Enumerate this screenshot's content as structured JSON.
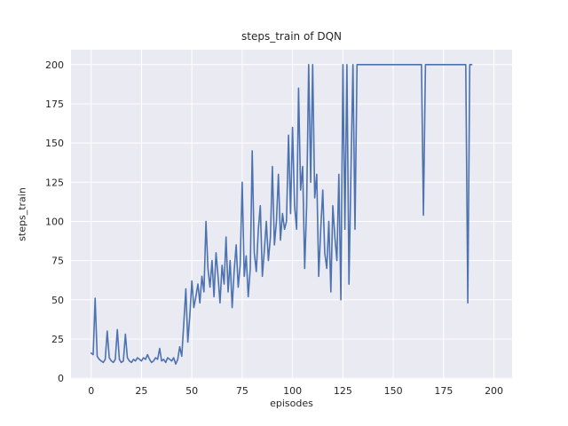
{
  "chart_data": {
    "type": "line",
    "title": "steps_train of DQN",
    "xlabel": "episodes",
    "ylabel": "steps_train",
    "legend": "none",
    "grid": true,
    "xlim": [
      -10,
      209
    ],
    "ylim": [
      -0.5,
      209.5
    ],
    "xticks": [
      0,
      25,
      50,
      75,
      100,
      125,
      150,
      175,
      200
    ],
    "yticks": [
      0,
      25,
      50,
      75,
      100,
      125,
      150,
      175,
      200
    ],
    "x_start": 0,
    "x_step": 1,
    "series_name": "steps_train",
    "values": [
      16,
      15,
      51,
      14,
      12,
      11,
      10,
      12,
      30,
      13,
      11,
      10,
      12,
      31,
      12,
      10,
      11,
      28,
      13,
      11,
      10,
      12,
      11,
      13,
      12,
      11,
      13,
      12,
      15,
      12,
      10,
      11,
      13,
      12,
      19,
      11,
      12,
      10,
      13,
      12,
      11,
      13,
      9,
      12,
      20,
      14,
      35,
      57,
      23,
      40,
      62,
      45,
      52,
      60,
      48,
      65,
      55,
      100,
      70,
      58,
      75,
      52,
      80,
      65,
      48,
      72,
      60,
      90,
      55,
      75,
      45,
      68,
      85,
      58,
      72,
      125,
      65,
      78,
      52,
      70,
      145,
      80,
      68,
      95,
      110,
      65,
      82,
      100,
      75,
      90,
      135,
      85,
      100,
      130,
      88,
      105,
      95,
      100,
      155,
      105,
      160,
      110,
      95,
      185,
      120,
      135,
      70,
      110,
      200,
      125,
      200,
      115,
      130,
      65,
      95,
      120,
      80,
      70,
      100,
      55,
      110,
      90,
      75,
      130,
      50,
      200,
      95,
      200,
      60,
      130,
      200,
      95,
      200,
      200,
      200,
      200,
      200,
      200,
      200,
      200,
      200,
      200,
      200,
      200,
      200,
      200,
      200,
      200,
      200,
      200,
      200,
      200,
      200,
      200,
      200,
      200,
      200,
      200,
      200,
      200,
      200,
      200,
      200,
      200,
      200,
      104,
      200,
      200,
      200,
      200,
      200,
      200,
      200,
      200,
      200,
      200,
      200,
      200,
      200,
      200,
      200,
      200,
      200,
      200,
      200,
      200,
      200,
      48,
      200,
      200
    ],
    "colors": {
      "line": "#4c72b0",
      "plot_bg": "#eaeaf2",
      "grid": "#ffffff",
      "text": "#262626",
      "figure_bg": "#ffffff"
    }
  }
}
